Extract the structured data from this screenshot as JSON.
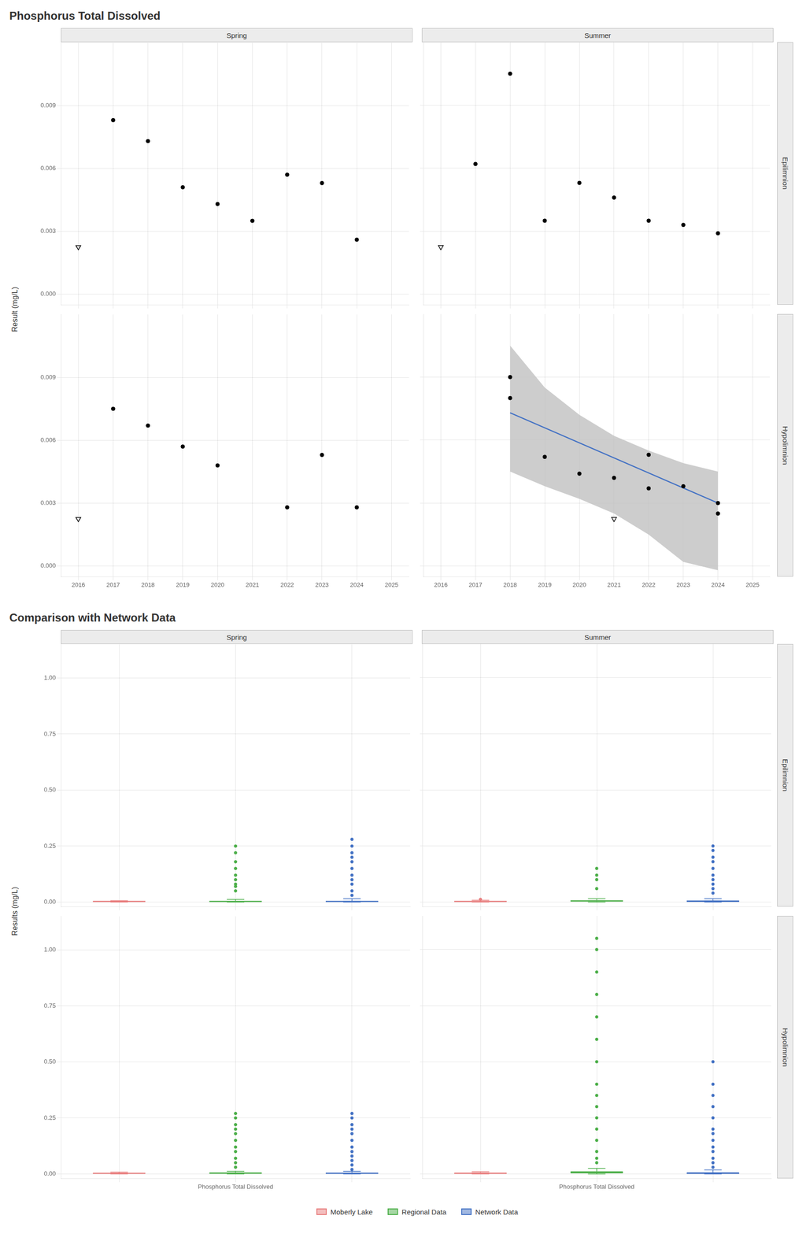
{
  "chart_data": [
    {
      "type": "scatter",
      "title": "Phosphorus Total Dissolved",
      "ylabel": "Result (mg/L)",
      "columns": [
        "Spring",
        "Summer"
      ],
      "rows": [
        "Epilimnion",
        "Hypolimnion"
      ],
      "xlim": [
        2015.5,
        2025.5
      ],
      "xticks": [
        2016,
        2017,
        2018,
        2019,
        2020,
        2021,
        2022,
        2023,
        2024,
        2025
      ],
      "ylim": [
        -0.0005,
        0.012
      ],
      "yticks": [
        {
          "value": 0,
          "label": "0.000"
        },
        0.003,
        0.006,
        0.009
      ],
      "grid": true,
      "panels": [
        {
          "tick_labels": "y",
          "series": [
            {
              "marker": "circle",
              "color": "#000000",
              "x": [
                2017,
                2018,
                2019,
                2020,
                2021,
                2022,
                2023,
                2024
              ],
              "values": [
                0.0083,
                0.0073,
                0.0051,
                0.0043,
                0.0035,
                0.0057,
                0.0053,
                0.0026
              ]
            },
            {
              "marker": "open_triangle_down",
              "color": "#000000",
              "x": [
                2016
              ],
              "values": [
                0.00225
              ]
            }
          ]
        },
        {
          "tick_labels": false,
          "series": [
            {
              "marker": "circle",
              "color": "#000000",
              "x": [
                2017,
                2018,
                2019,
                2020,
                2021,
                2022,
                2023,
                2024
              ],
              "values": [
                0.0062,
                0.0105,
                0.0035,
                0.0053,
                0.0046,
                0.0035,
                0.0033,
                0.0029
              ]
            },
            {
              "marker": "open_triangle_down",
              "color": "#000000",
              "x": [
                2016
              ],
              "values": [
                0.00225
              ]
            }
          ]
        },
        {
          "tick_labels": true,
          "series": [
            {
              "marker": "circle",
              "color": "#000000",
              "x": [
                2017,
                2018,
                2019,
                2020,
                2022,
                2023,
                2024
              ],
              "values": [
                0.0075,
                0.0067,
                0.0057,
                0.0048,
                0.0028,
                0.0053,
                0.0028
              ]
            },
            {
              "marker": "open_triangle_down",
              "color": "#000000",
              "x": [
                2016
              ],
              "values": [
                0.00225
              ]
            }
          ]
        },
        {
          "tick_labels": "x",
          "series": [
            {
              "type": "area",
              "color": "#C0C0C0",
              "x": [
                2018,
                2019,
                2020,
                2021,
                2022,
                2023,
                2024
              ],
              "upper": [
                0.0105,
                0.0085,
                0.0072,
                0.0062,
                0.0055,
                0.0049,
                0.0045
              ],
              "lower": [
                0.0045,
                0.0038,
                0.0032,
                0.0025,
                0.0015,
                0.0002,
                -0.0002
              ]
            },
            {
              "type": "line",
              "color": "#4472C4",
              "x": [
                2018,
                2024
              ],
              "values": [
                0.0073,
                0.003
              ]
            },
            {
              "marker": "circle",
              "color": "#000000",
              "x": [
                2018,
                2018,
                2019,
                2020,
                2021,
                2022,
                2022,
                2023,
                2024,
                2024
              ],
              "values": [
                0.009,
                0.008,
                0.0052,
                0.0044,
                0.0042,
                0.0053,
                0.0037,
                0.0038,
                0.003,
                0.0025
              ]
            },
            {
              "marker": "open_triangle_down",
              "color": "#000000",
              "x": [
                2021
              ],
              "values": [
                0.00225
              ]
            }
          ]
        }
      ]
    },
    {
      "type": "box",
      "title": "Comparison with Network Data",
      "ylabel": "Results (mg/L)",
      "columns": [
        "Spring",
        "Summer"
      ],
      "rows": [
        "Epilimnion",
        "Hypolimnion"
      ],
      "categories": [
        null,
        "Phosphorus Total Dissolved",
        null
      ],
      "ylim": [
        -0.02,
        1.15
      ],
      "yticks": [
        {
          "value": 0,
          "label": "0.00"
        },
        0.25,
        {
          "value": 0.5,
          "label": "0.50"
        },
        0.75,
        {
          "value": 1,
          "label": "1.00"
        }
      ],
      "grid": true,
      "legend": "bottom",
      "panels": [
        {
          "tick_labels": "y",
          "series": [
            {
              "name": "Moberly Lake",
              "color": "#E87D7D",
              "q1": 0.001,
              "median": 0.003,
              "q3": 0.004,
              "whisker_low": 0.0,
              "whisker_high": 0.006,
              "outliers": []
            },
            {
              "name": "Regional Data",
              "color": "#4DAF4A",
              "q1": 0.001,
              "median": 0.003,
              "q3": 0.005,
              "whisker_low": 0.0,
              "whisker_high": 0.012,
              "outliers": [
                0.05,
                0.07,
                0.08,
                0.1,
                0.12,
                0.15,
                0.18,
                0.22,
                0.25
              ]
            },
            {
              "name": "Network Data",
              "color": "#4472C4",
              "q1": 0.001,
              "median": 0.003,
              "q3": 0.005,
              "whisker_low": 0.0,
              "whisker_high": 0.015,
              "outliers": [
                0.03,
                0.05,
                0.08,
                0.1,
                0.12,
                0.15,
                0.18,
                0.2,
                0.22,
                0.25,
                0.28
              ]
            }
          ]
        },
        {
          "tick_labels": false,
          "series": [
            {
              "name": "Moberly Lake",
              "color": "#E87D7D",
              "q1": 0.001,
              "median": 0.003,
              "q3": 0.005,
              "whisker_low": 0.0,
              "whisker_high": 0.008,
              "outliers": [
                0.012
              ]
            },
            {
              "name": "Regional Data",
              "color": "#4DAF4A",
              "q1": 0.002,
              "median": 0.005,
              "q3": 0.008,
              "whisker_low": 0.0,
              "whisker_high": 0.015,
              "outliers": [
                0.06,
                0.1,
                0.12,
                0.15
              ]
            },
            {
              "name": "Network Data",
              "color": "#4472C4",
              "q1": 0.001,
              "median": 0.004,
              "q3": 0.007,
              "whisker_low": 0.0,
              "whisker_high": 0.015,
              "outliers": [
                0.04,
                0.06,
                0.08,
                0.1,
                0.12,
                0.15,
                0.18,
                0.2,
                0.23,
                0.25
              ]
            }
          ]
        },
        {
          "tick_labels": true,
          "series": [
            {
              "name": "Moberly Lake",
              "color": "#E87D7D",
              "q1": 0.001,
              "median": 0.003,
              "q3": 0.005,
              "whisker_low": 0.0,
              "whisker_high": 0.008,
              "outliers": []
            },
            {
              "name": "Regional Data",
              "color": "#4DAF4A",
              "q1": 0.001,
              "median": 0.004,
              "q3": 0.006,
              "whisker_low": 0.0,
              "whisker_high": 0.012,
              "outliers": [
                0.03,
                0.05,
                0.07,
                0.1,
                0.12,
                0.15,
                0.18,
                0.2,
                0.22,
                0.25,
                0.27
              ]
            },
            {
              "name": "Network Data",
              "color": "#4472C4",
              "q1": 0.001,
              "median": 0.003,
              "q3": 0.006,
              "whisker_low": 0.0,
              "whisker_high": 0.012,
              "outliers": [
                0.02,
                0.04,
                0.06,
                0.08,
                0.1,
                0.12,
                0.15,
                0.18,
                0.2,
                0.22,
                0.25,
                0.27
              ]
            }
          ]
        },
        {
          "tick_labels": "x",
          "series": [
            {
              "name": "Moberly Lake",
              "color": "#E87D7D",
              "q1": 0.001,
              "median": 0.003,
              "q3": 0.006,
              "whisker_low": 0.0,
              "whisker_high": 0.01,
              "outliers": []
            },
            {
              "name": "Regional Data",
              "color": "#4DAF4A",
              "q1": 0.003,
              "median": 0.007,
              "q3": 0.012,
              "whisker_low": 0.0,
              "whisker_high": 0.025,
              "outliers": [
                0.05,
                0.07,
                0.1,
                0.15,
                0.2,
                0.25,
                0.3,
                0.35,
                0.4,
                0.5,
                0.6,
                0.7,
                0.8,
                0.9,
                1.0,
                1.05
              ]
            },
            {
              "name": "Network Data",
              "color": "#4472C4",
              "q1": 0.001,
              "median": 0.003,
              "q3": 0.007,
              "whisker_low": 0.0,
              "whisker_high": 0.018,
              "outliers": [
                0.03,
                0.05,
                0.07,
                0.1,
                0.12,
                0.15,
                0.18,
                0.2,
                0.25,
                0.3,
                0.35,
                0.4,
                0.5
              ]
            }
          ]
        }
      ]
    }
  ]
}
